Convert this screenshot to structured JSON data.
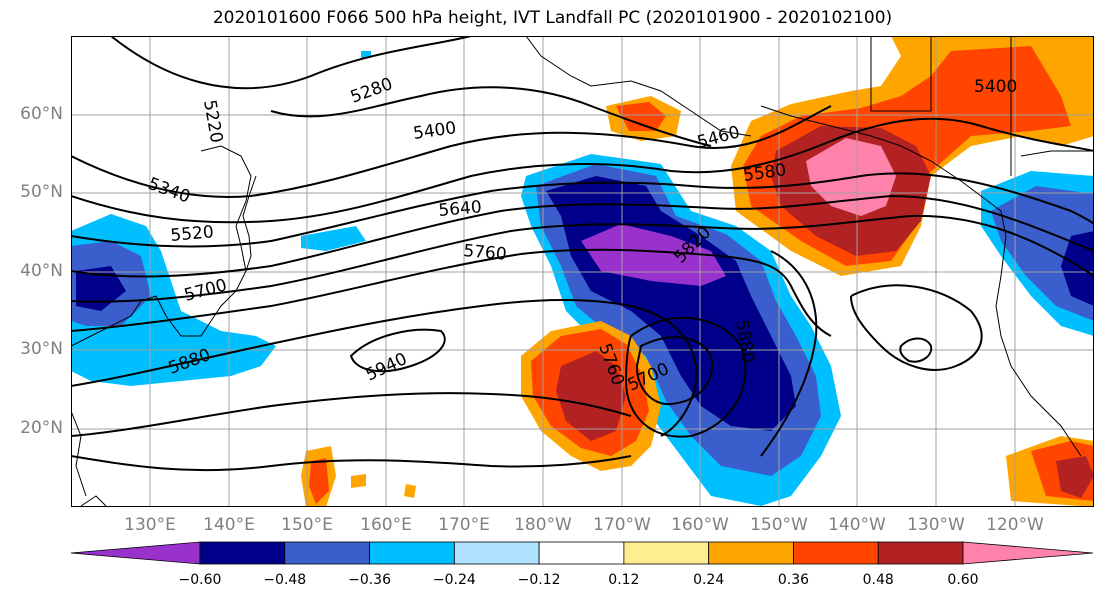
{
  "title": "2020101600 F066 500 hPa height, IVT Landfall PC (2020101900 - 2020102100)",
  "lat_labels": [
    "60°N",
    "50°N",
    "40°N",
    "30°N",
    "20°N"
  ],
  "lon_labels": [
    "130°E",
    "140°E",
    "150°E",
    "160°E",
    "170°E",
    "180°W",
    "170°W",
    "160°W",
    "150°W",
    "140°W",
    "130°W",
    "120°W"
  ],
  "contour_labels": [
    "5220",
    "5280",
    "5400",
    "5340",
    "5520",
    "5640",
    "5760",
    "5700",
    "5880",
    "5940",
    "5760",
    "5700",
    "5820",
    "5880",
    "5460",
    "5580",
    "5400"
  ],
  "colorbar": {
    "colors": [
      "#9932cc",
      "#00008b",
      "#3a5fcd",
      "#00bfff",
      "#b0e2ff",
      "#ffffff",
      "#ffee90",
      "#ffa500",
      "#ff4500",
      "#b22222",
      "#ff82ab"
    ],
    "tick_labels": [
      "−0.60",
      "−0.48",
      "−0.36",
      "−0.24",
      "−0.12",
      "0.12",
      "0.24",
      "0.36",
      "0.48",
      "0.60"
    ]
  }
}
